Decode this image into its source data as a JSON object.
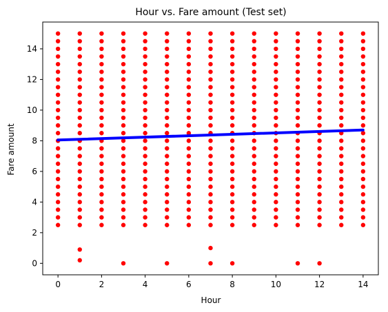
{
  "chart_data": {
    "type": "scatter",
    "title": "Hour vs. Fare amount (Test set)",
    "xlabel": "Hour",
    "ylabel": "Fare amount",
    "xlim": [
      -0.7,
      14.7
    ],
    "ylim": [
      -0.75,
      15.75
    ],
    "xticks": [
      0,
      2,
      4,
      6,
      8,
      10,
      12,
      14
    ],
    "yticks": [
      0,
      2,
      4,
      6,
      8,
      10,
      12,
      14
    ],
    "grid": false,
    "colors": {
      "points": "#ff0000",
      "line": "#0000ff",
      "axes": "#000000"
    },
    "scatter": {
      "name": "",
      "fare_grid": {
        "min": 2.5,
        "max": 15.0,
        "step": 0.5
      },
      "hours": [
        0,
        1,
        2,
        3,
        4,
        5,
        6,
        7,
        8,
        9,
        10,
        11,
        12,
        13,
        14
      ],
      "extra_points": [
        {
          "x": 1,
          "y": 0.9
        },
        {
          "x": 1,
          "y": 0.2
        },
        {
          "x": 3,
          "y": 0.0
        },
        {
          "x": 5,
          "y": 0.0
        },
        {
          "x": 7,
          "y": 1.0
        },
        {
          "x": 7,
          "y": 0.0
        },
        {
          "x": 8,
          "y": 0.0
        },
        {
          "x": 11,
          "y": 0.0
        },
        {
          "x": 12,
          "y": 0.0
        }
      ]
    },
    "regression_line": {
      "name": "",
      "x": [
        0,
        14
      ],
      "y": [
        8.05,
        8.7
      ]
    }
  }
}
